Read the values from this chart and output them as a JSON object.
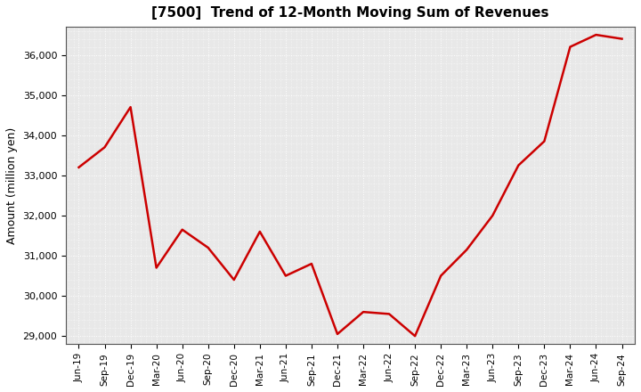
{
  "title": "[7500]  Trend of 12-Month Moving Sum of Revenues",
  "ylabel": "Amount (million yen)",
  "line_color": "#cc0000",
  "background_color": "#ffffff",
  "plot_bg_color": "#e8e8e8",
  "grid_color": "#ffffff",
  "ylim": [
    28800,
    36700
  ],
  "yticks": [
    29000,
    30000,
    31000,
    32000,
    33000,
    34000,
    35000,
    36000
  ],
  "x_labels": [
    "Jun-19",
    "Sep-19",
    "Dec-19",
    "Mar-20",
    "Jun-20",
    "Sep-20",
    "Dec-20",
    "Mar-21",
    "Jun-21",
    "Sep-21",
    "Dec-21",
    "Mar-22",
    "Jun-22",
    "Sep-22",
    "Dec-22",
    "Mar-23",
    "Jun-23",
    "Sep-23",
    "Dec-23",
    "Mar-24",
    "Jun-24",
    "Sep-24"
  ],
  "values": [
    33200,
    33700,
    34700,
    30700,
    31650,
    31200,
    30400,
    31600,
    30500,
    30800,
    29050,
    29600,
    29550,
    29000,
    30500,
    31150,
    32000,
    33250,
    33850,
    36200,
    36500,
    36400
  ]
}
